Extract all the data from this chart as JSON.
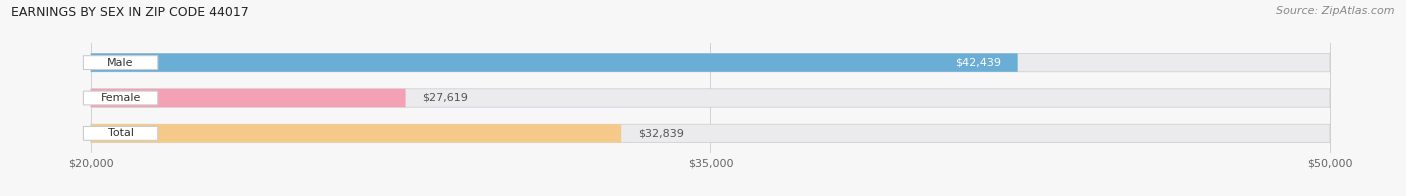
{
  "title": "EARNINGS BY SEX IN ZIP CODE 44017",
  "source": "Source: ZipAtlas.com",
  "categories": [
    "Male",
    "Female",
    "Total"
  ],
  "values": [
    42439,
    27619,
    32839
  ],
  "bar_colors": [
    "#6aaed6",
    "#f4a0b5",
    "#f5c98a"
  ],
  "x_min": 20000,
  "x_max": 50000,
  "x_axis_start": 20000,
  "xticks": [
    20000,
    35000,
    50000
  ],
  "xtick_labels": [
    "$20,000",
    "$35,000",
    "$50,000"
  ],
  "bar_height": 0.52,
  "bg_color": "#f7f7f8",
  "bar_bg_color": "#ebebed",
  "value_labels": [
    "$42,439",
    "$27,619",
    "$32,839"
  ],
  "value_label_inside": [
    true,
    false,
    false
  ],
  "value_label_colors": [
    "white",
    "#555555",
    "#555555"
  ],
  "figsize": [
    14.06,
    1.96
  ],
  "dpi": 100,
  "label_box_color": "white",
  "label_text_color": "#333333",
  "grid_color": "#d0d0d5",
  "spine_color": "#cccccc"
}
